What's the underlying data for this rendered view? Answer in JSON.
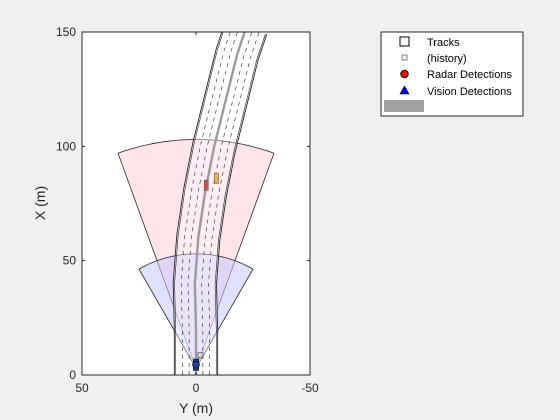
{
  "chart_data": {
    "type": "scatter",
    "xlabel": "Y (m)",
    "ylabel": "X (m)",
    "xlim": [
      50,
      -50
    ],
    "ylim": [
      0,
      150
    ],
    "x_direction": "reversed",
    "grid": false,
    "x_ticks": [
      {
        "value": 50,
        "label": "50"
      },
      {
        "value": 0,
        "label": "0"
      },
      {
        "value": -50,
        "label": "-50"
      }
    ],
    "y_ticks": [
      {
        "value": 0,
        "label": "0"
      },
      {
        "value": 50,
        "label": "50"
      },
      {
        "value": 100,
        "label": "100"
      },
      {
        "value": 150,
        "label": "150"
      }
    ],
    "legend": {
      "placement": "top-right (outside axes)",
      "entries": [
        {
          "label": "Tracks",
          "marker": "square-hollow",
          "color": "#000000"
        },
        {
          "label": "(history)",
          "marker": "square-hollow-small",
          "color": "#808080"
        },
        {
          "label": "Radar Detections",
          "marker": "circle-filled",
          "color": "#ff0000"
        },
        {
          "label": "Vision Detections",
          "marker": "triangle-filled",
          "color": "#0000ff"
        },
        {
          "label": "",
          "marker": "patch",
          "color": "#a0a0a0"
        }
      ]
    },
    "coverage_areas": [
      {
        "sensor": "radar",
        "apex": [
          0,
          3
        ],
        "range": 100,
        "fov_deg": 40,
        "fill": "#ffd6df",
        "opacity": 0.65
      },
      {
        "sensor": "vision",
        "apex": [
          0,
          3
        ],
        "range": 50,
        "fov_deg": 60,
        "fill": "#c8c8ff",
        "opacity": 0.55
      }
    ],
    "road": {
      "centerline": [
        [
          0,
          0
        ],
        [
          0,
          20
        ],
        [
          0.5,
          40
        ],
        [
          -1,
          60
        ],
        [
          -4,
          80
        ],
        [
          -8,
          100
        ],
        [
          -13,
          120
        ],
        [
          -18,
          140
        ],
        [
          -22,
          152
        ]
      ],
      "outer_half_width": 9.5,
      "lane_lines": [
        -6,
        -3,
        3,
        6
      ],
      "center_line_color": "#9a9a9a"
    },
    "ego_vehicle": {
      "y": 0,
      "x": 4.5,
      "color": "#1f3ea0"
    },
    "targets": [
      {
        "y": -4.5,
        "x": 83,
        "width": 1.8,
        "length": 4.5,
        "color": "#e04a3a"
      },
      {
        "y": -9,
        "x": 86,
        "width": 1.8,
        "length": 4.5,
        "color": "#f2b04a"
      }
    ]
  }
}
